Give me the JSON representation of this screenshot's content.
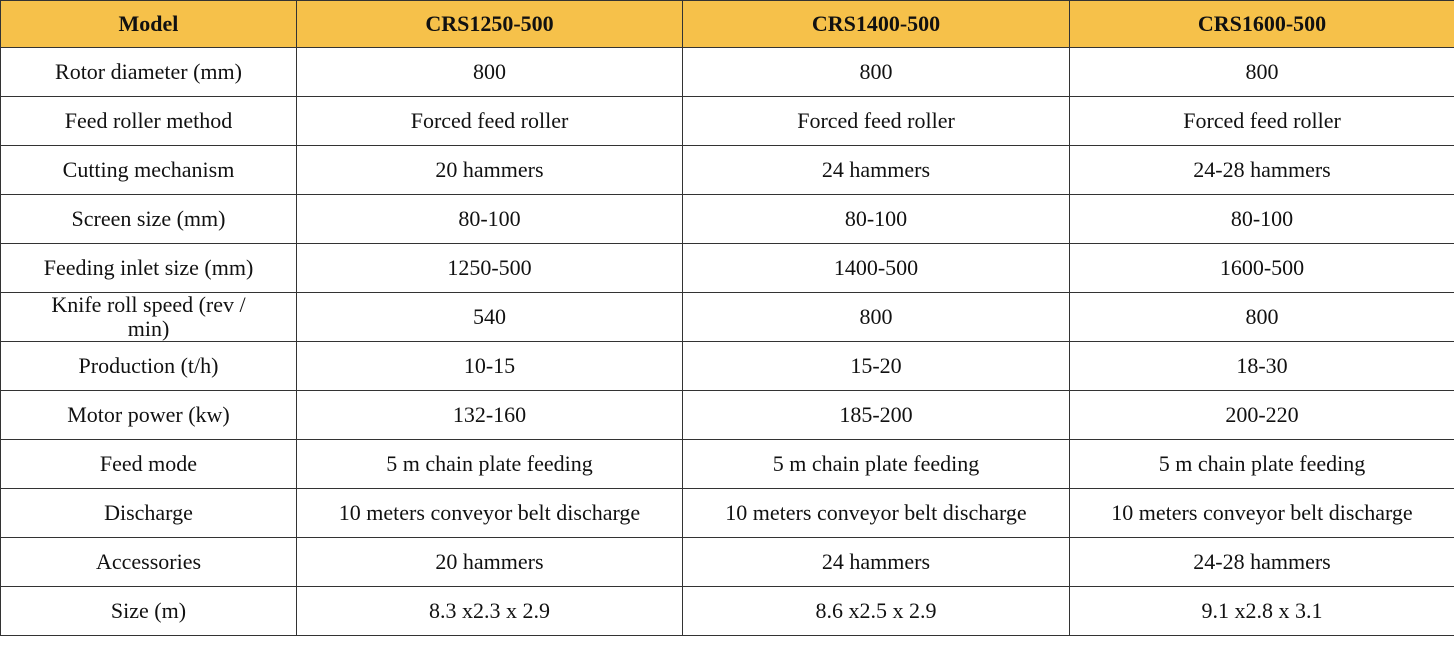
{
  "table": {
    "header": [
      "Model",
      "CRS1250-500",
      "CRS1400-500",
      "CRS1600-500"
    ],
    "rows": [
      [
        "Rotor diameter (mm)",
        "800",
        "800",
        "800"
      ],
      [
        "Feed roller method",
        "Forced feed roller",
        "Forced feed roller",
        "Forced feed roller"
      ],
      [
        "Cutting mechanism",
        "20 hammers",
        "24 hammers",
        "24-28 hammers"
      ],
      [
        "Screen size (mm)",
        "80-100",
        "80-100",
        "80-100"
      ],
      [
        "Feeding inlet size (mm)",
        "1250-500",
        "1400-500",
        "1600-500"
      ],
      [
        "Knife roll speed (rev / min)",
        "540",
        "800",
        "800"
      ],
      [
        "Production (t/h)",
        "10-15",
        "15-20",
        "18-30"
      ],
      [
        "Motor power (kw)",
        "132-160",
        "185-200",
        "200-220"
      ],
      [
        "Feed mode",
        "5 m chain plate feeding",
        "5 m chain plate feeding",
        "5 m chain plate feeding"
      ],
      [
        "Discharge",
        "10 meters conveyor belt discharge",
        "10 meters conveyor belt discharge",
        "10 meters conveyor belt discharge"
      ],
      [
        "Accessories",
        "20 hammers",
        "24 hammers",
        "24-28 hammers"
      ],
      [
        "Size (m)",
        "8.3 x2.3 x 2.9",
        "8.6 x2.5 x 2.9",
        "9.1 x2.8 x 3.1"
      ]
    ]
  }
}
